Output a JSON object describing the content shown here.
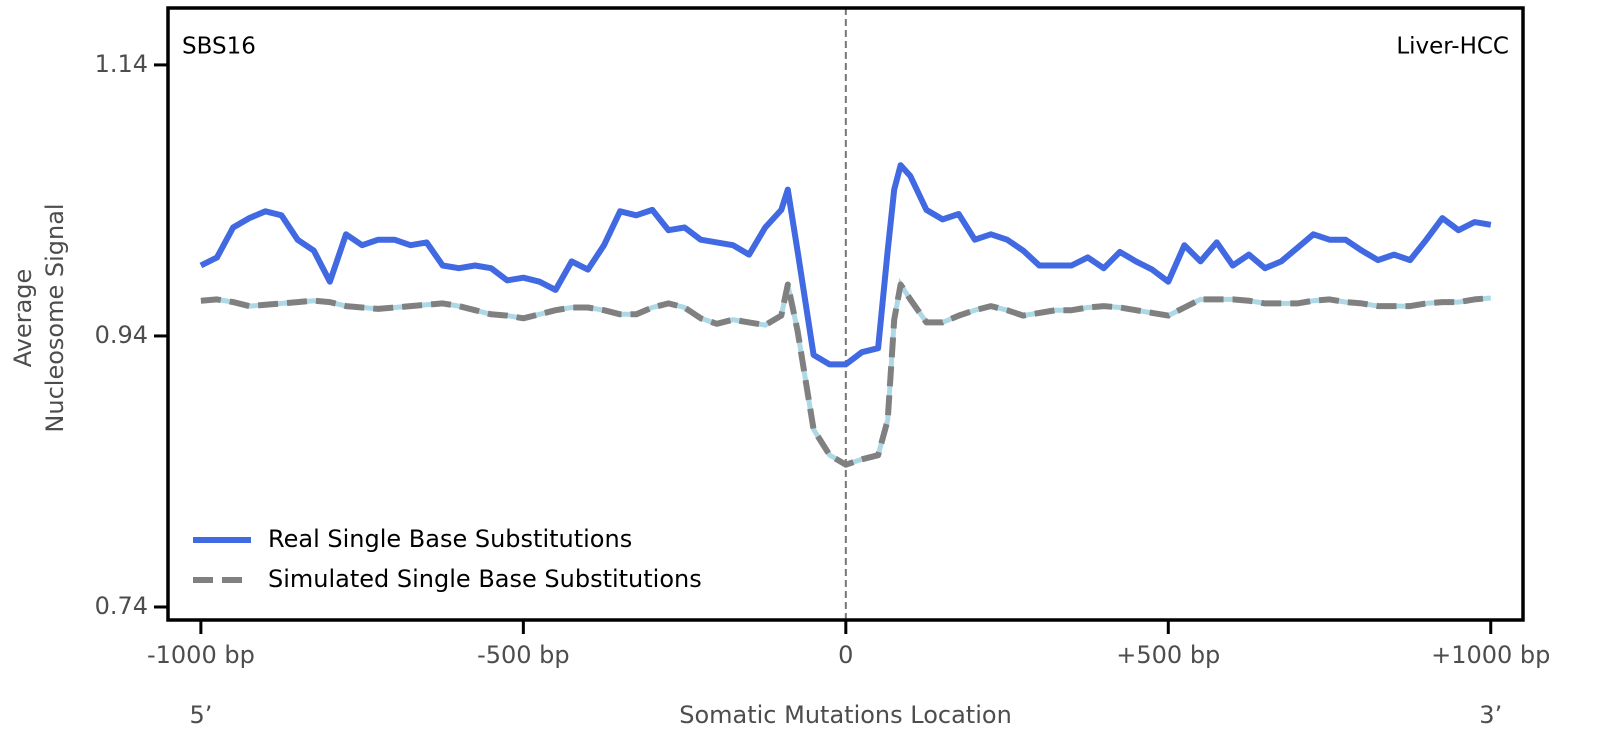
{
  "chart_data": {
    "type": "line",
    "annotations": {
      "top_left": "SBS16",
      "top_right": "Liver-HCC",
      "left_end": "5’",
      "right_end": "3’"
    },
    "xlabel": "Somatic Mutations Location",
    "ylabel": [
      "Average",
      "Nucleosome Signal"
    ],
    "xlim": [
      -1051,
      1050
    ],
    "ylim": [
      0.7304,
      1.182
    ],
    "xticks": [
      {
        "value": -1000,
        "label": "-1000 bp"
      },
      {
        "value": -500,
        "label": "-500 bp"
      },
      0,
      {
        "value": 500,
        "label": "+500 bp"
      },
      {
        "value": 1000,
        "label": "+1000 bp"
      }
    ],
    "yticks": [
      1.14,
      0.94,
      0.74
    ],
    "vline": 0,
    "legend": "lower left",
    "x": [
      -1000,
      -975,
      -950,
      -925,
      -900,
      -875,
      -850,
      -825,
      -800,
      -775,
      -750,
      -725,
      -700,
      -675,
      -650,
      -625,
      -600,
      -575,
      -550,
      -525,
      -500,
      -475,
      -450,
      -425,
      -400,
      -375,
      -350,
      -325,
      -300,
      -275,
      -250,
      -225,
      -200,
      -175,
      -150,
      -125,
      -100,
      -90,
      -75,
      -50,
      -25,
      0,
      25,
      50,
      65,
      75,
      85,
      100,
      125,
      150,
      175,
      200,
      225,
      250,
      275,
      300,
      325,
      350,
      375,
      400,
      425,
      450,
      475,
      500,
      525,
      550,
      575,
      600,
      625,
      650,
      675,
      700,
      725,
      750,
      775,
      800,
      825,
      850,
      875,
      900,
      925,
      950,
      975,
      1000
    ],
    "series": [
      {
        "name": "Real Single Base Substitutions",
        "color": "#4169e1",
        "style": "solid",
        "values": [
          0.992,
          0.998,
          1.02,
          1.027,
          1.032,
          1.029,
          1.011,
          1.003,
          0.98,
          1.015,
          1.007,
          1.011,
          1.011,
          1.007,
          1.009,
          0.992,
          0.99,
          0.992,
          0.99,
          0.981,
          0.983,
          0.98,
          0.974,
          0.995,
          0.989,
          1.007,
          1.032,
          1.029,
          1.033,
          1.018,
          1.02,
          1.011,
          1.009,
          1.007,
          1.0,
          1.02,
          1.033,
          1.048,
          1.003,
          0.926,
          0.919,
          0.919,
          0.928,
          0.931,
          1.003,
          1.048,
          1.066,
          1.058,
          1.033,
          1.026,
          1.03,
          1.011,
          1.015,
          1.011,
          1.003,
          0.992,
          0.992,
          0.992,
          0.998,
          0.99,
          1.002,
          0.995,
          0.989,
          0.98,
          1.007,
          0.995,
          1.009,
          0.992,
          1.0,
          0.99,
          0.995,
          1.005,
          1.015,
          1.011,
          1.011,
          1.003,
          0.996,
          1.0,
          0.996,
          1.011,
          1.027,
          1.018,
          1.024,
          1.022
        ]
      },
      {
        "name": "Simulated Single Base Substitutions",
        "color": "#808080",
        "style": "dashed",
        "under_color": "#add8e6",
        "values": [
          0.966,
          0.967,
          0.965,
          0.962,
          0.963,
          0.964,
          0.965,
          0.966,
          0.965,
          0.962,
          0.961,
          0.96,
          0.961,
          0.962,
          0.963,
          0.964,
          0.962,
          0.959,
          0.956,
          0.955,
          0.953,
          0.956,
          0.959,
          0.961,
          0.961,
          0.959,
          0.956,
          0.956,
          0.961,
          0.964,
          0.961,
          0.953,
          0.949,
          0.952,
          0.95,
          0.948,
          0.955,
          0.978,
          0.944,
          0.871,
          0.852,
          0.845,
          0.849,
          0.852,
          0.878,
          0.952,
          0.978,
          0.967,
          0.95,
          0.95,
          0.955,
          0.959,
          0.962,
          0.959,
          0.955,
          0.957,
          0.959,
          0.959,
          0.961,
          0.962,
          0.961,
          0.959,
          0.957,
          0.955,
          0.961,
          0.967,
          0.967,
          0.967,
          0.966,
          0.964,
          0.964,
          0.964,
          0.966,
          0.967,
          0.965,
          0.964,
          0.962,
          0.962,
          0.962,
          0.964,
          0.965,
          0.965,
          0.967,
          0.968
        ]
      }
    ]
  }
}
